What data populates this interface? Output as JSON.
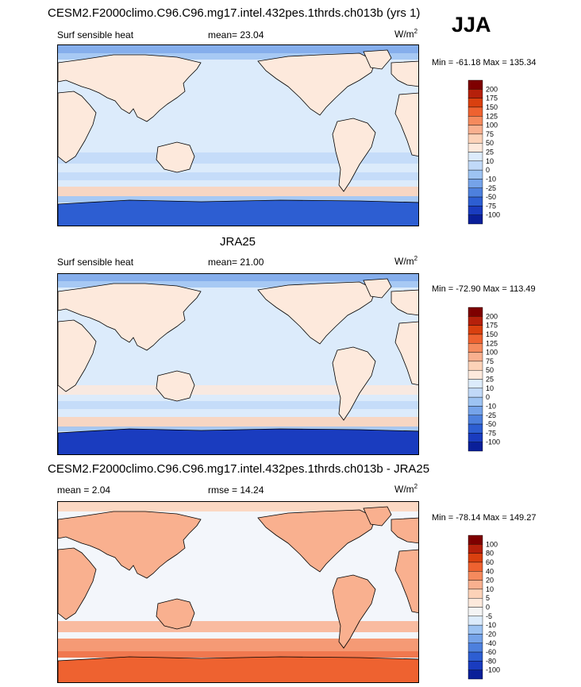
{
  "season": "JJA",
  "panels": [
    {
      "title": "CESM2.F2000climo.C96.C96.mg17.intel.432pes.1thrds.ch013b (yrs 1)",
      "left_label": "Surf sensible heat",
      "mean_label": "mean=  23.04",
      "units_base": "W/m",
      "units_sup": "2",
      "minmax": "Min = -61.18 Max = 135.34",
      "colorbar": {
        "labels": [
          "200",
          "175",
          "150",
          "125",
          "100",
          "75",
          "50",
          "25",
          "10",
          "0",
          "-10",
          "-25",
          "-50",
          "-75",
          "-100"
        ],
        "colors": [
          "#7e0000",
          "#b5200b",
          "#d9400f",
          "#ee6230",
          "#f58a5d",
          "#f9b08f",
          "#fcd2b8",
          "#fde9dc",
          "#dcebfb",
          "#c1d9f8",
          "#9dc3f2",
          "#75a3e9",
          "#4d80dd",
          "#2d5ed2",
          "#1a3cbf",
          "#0a1f99"
        ]
      },
      "ocean_color": "#dcebfb",
      "land_color": "#fde9dc",
      "ant_color": "#2d5ed2"
    },
    {
      "title": "JRA25",
      "left_label": "Surf sensible heat",
      "mean_label": "mean=  21.00",
      "units_base": "W/m",
      "units_sup": "2",
      "minmax": "Min = -72.90 Max = 113.49",
      "colorbar": {
        "labels": [
          "200",
          "175",
          "150",
          "125",
          "100",
          "75",
          "50",
          "25",
          "10",
          "0",
          "-10",
          "-25",
          "-50",
          "-75",
          "-100"
        ],
        "colors": [
          "#7e0000",
          "#b5200b",
          "#d9400f",
          "#ee6230",
          "#f58a5d",
          "#f9b08f",
          "#fcd2b8",
          "#fde9dc",
          "#dcebfb",
          "#c1d9f8",
          "#9dc3f2",
          "#75a3e9",
          "#4d80dd",
          "#2d5ed2",
          "#1a3cbf",
          "#0a1f99"
        ]
      },
      "ocean_color": "#dcebfb",
      "land_color": "#fde9dc",
      "ant_color": "#1a3cbf"
    },
    {
      "title": "CESM2.F2000climo.C96.C96.mg17.intel.432pes.1thrds.ch013b - JRA25",
      "left_label": "mean =   2.04",
      "mean_label": "rmse =  14.24",
      "units_base": "W/m",
      "units_sup": "2",
      "minmax": "Min = -78.14 Max = 149.27",
      "colorbar": {
        "labels": [
          "100",
          "80",
          "60",
          "40",
          "20",
          "10",
          "5",
          "0",
          "-5",
          "-10",
          "-20",
          "-40",
          "-60",
          "-80",
          "-100"
        ],
        "colors": [
          "#7e0000",
          "#b5200b",
          "#d9400f",
          "#ee6230",
          "#f58a5d",
          "#f9b08f",
          "#fcd2b8",
          "#fde9dc",
          "#f4f4f4",
          "#dcebfb",
          "#9dc3f2",
          "#75a3e9",
          "#4d80dd",
          "#2d5ed2",
          "#1a3cbf",
          "#0a1f99"
        ]
      },
      "ocean_color": "#f3f6fb",
      "land_color": "#f9b08f",
      "ant_color": "#ee6230"
    }
  ],
  "chart_data": [
    {
      "type": "heatmap",
      "title": "CESM2.F2000climo.C96.C96.mg17.intel.432pes.1thrds.ch013b (yrs 1)",
      "variable": "Surf sensible heat",
      "units": "W/m2",
      "mean": 23.04,
      "min": -61.18,
      "max": 135.34,
      "levels": [
        -100,
        -75,
        -50,
        -25,
        -10,
        0,
        10,
        25,
        50,
        75,
        100,
        125,
        150,
        175,
        200
      ]
    },
    {
      "type": "heatmap",
      "title": "JRA25",
      "variable": "Surf sensible heat",
      "units": "W/m2",
      "mean": 21.0,
      "min": -72.9,
      "max": 113.49,
      "levels": [
        -100,
        -75,
        -50,
        -25,
        -10,
        0,
        10,
        25,
        50,
        75,
        100,
        125,
        150,
        175,
        200
      ]
    },
    {
      "type": "heatmap",
      "title": "CESM2.F2000climo.C96.C96.mg17.intel.432pes.1thrds.ch013b - JRA25",
      "units": "W/m2",
      "mean": 2.04,
      "rmse": 14.24,
      "min": -78.14,
      "max": 149.27,
      "levels": [
        -100,
        -80,
        -60,
        -40,
        -20,
        -10,
        -5,
        0,
        5,
        10,
        20,
        40,
        60,
        80,
        100
      ]
    }
  ]
}
